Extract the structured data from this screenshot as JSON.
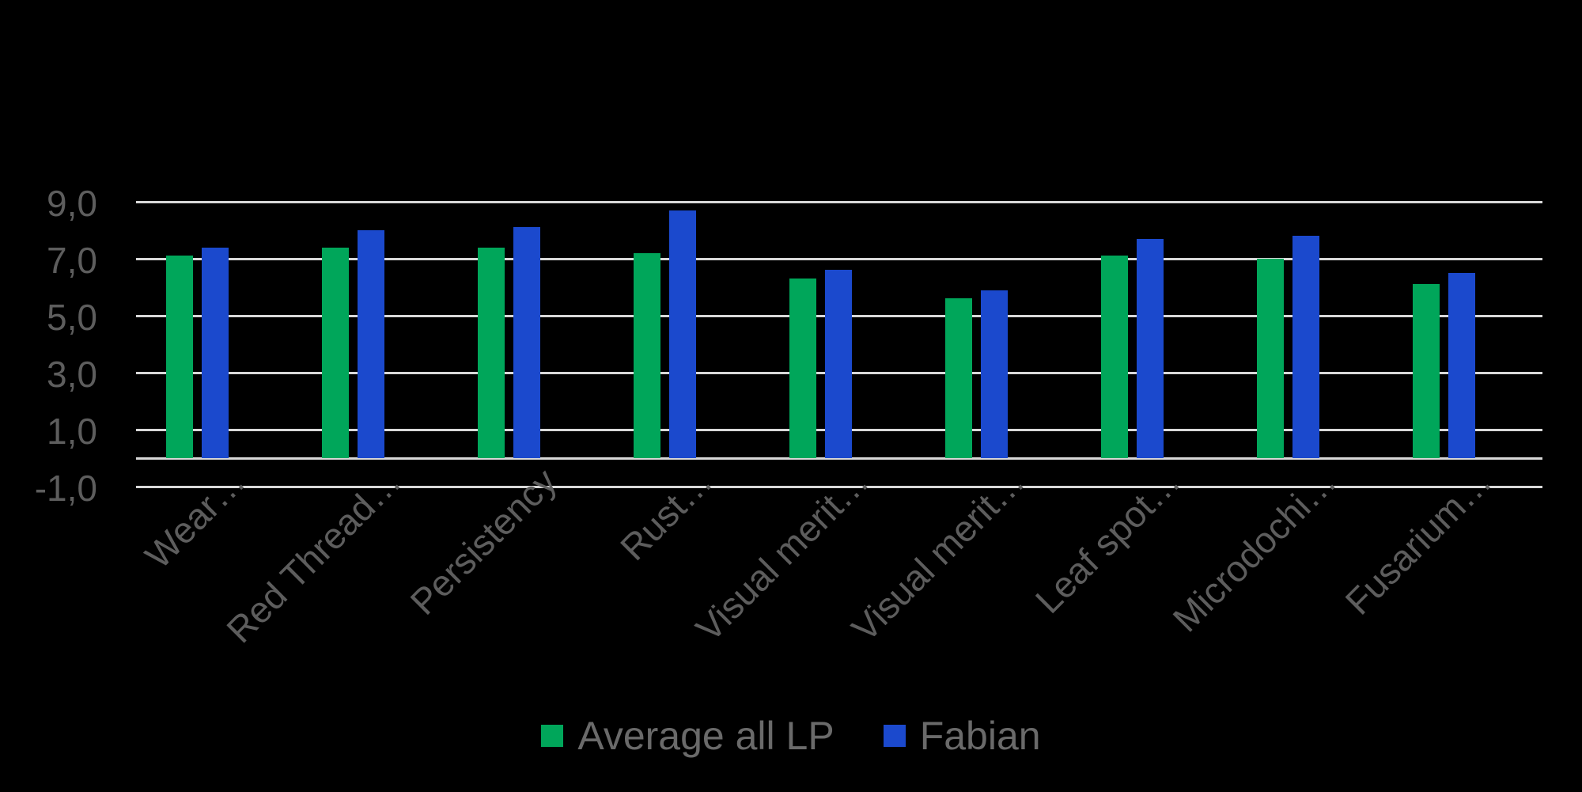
{
  "chart_data": {
    "type": "bar",
    "title": "",
    "xlabel": "",
    "ylabel": "",
    "categories": [
      "Wear…",
      "Red Thread…",
      "Persistency",
      "Rust…",
      "Visual merit…",
      "Visual merit…",
      "Leaf spot…",
      "Microdochi…",
      "Fusarium…"
    ],
    "series": [
      {
        "name": "Average all LP",
        "color": "#00a65a",
        "values": [
          7.1,
          7.4,
          7.4,
          7.2,
          6.3,
          5.6,
          7.1,
          7.0,
          6.1
        ]
      },
      {
        "name": "Fabian",
        "color": "#1b49cd",
        "values": [
          7.4,
          8.0,
          8.1,
          8.7,
          6.6,
          5.9,
          7.7,
          7.8,
          6.5
        ]
      }
    ],
    "ylim": [
      -1,
      9
    ],
    "y_ticks": [
      {
        "value": 9,
        "label": "9,0"
      },
      {
        "value": 7,
        "label": "7,0"
      },
      {
        "value": 5,
        "label": "5,0"
      },
      {
        "value": 3,
        "label": "3,0"
      },
      {
        "value": 1,
        "label": "1,0"
      },
      {
        "value": -1,
        "label": "-1,0"
      }
    ],
    "gridline_values": [
      9,
      7,
      5,
      3,
      1,
      0,
      -1
    ],
    "grid_on": true,
    "legend_position": "bottom-center",
    "number_format": "comma-decimal",
    "colors": {
      "background": "#000000",
      "gridline": "#d8d8d8",
      "axis_text": "#5d5d5d",
      "legend_text": "#6a6a6a"
    }
  }
}
